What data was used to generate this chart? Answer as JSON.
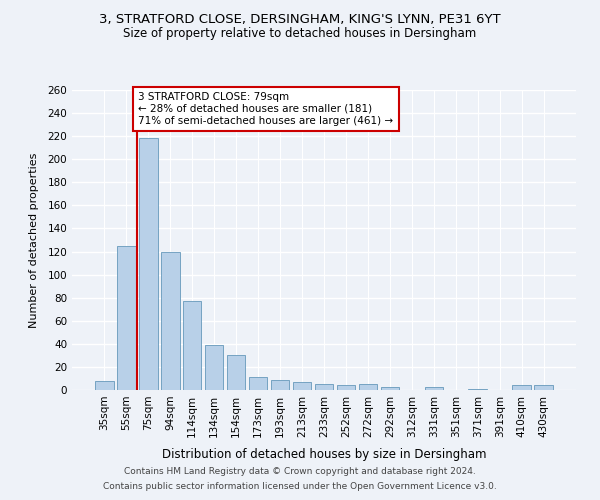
{
  "title1": "3, STRATFORD CLOSE, DERSINGHAM, KING'S LYNN, PE31 6YT",
  "title2": "Size of property relative to detached houses in Dersingham",
  "xlabel": "Distribution of detached houses by size in Dersingham",
  "ylabel": "Number of detached properties",
  "categories": [
    "35sqm",
    "55sqm",
    "75sqm",
    "94sqm",
    "114sqm",
    "134sqm",
    "154sqm",
    "173sqm",
    "193sqm",
    "213sqm",
    "233sqm",
    "252sqm",
    "272sqm",
    "292sqm",
    "312sqm",
    "331sqm",
    "351sqm",
    "371sqm",
    "391sqm",
    "410sqm",
    "430sqm"
  ],
  "values": [
    8,
    125,
    218,
    120,
    77,
    39,
    30,
    11,
    9,
    7,
    5,
    4,
    5,
    3,
    0,
    3,
    0,
    1,
    0,
    4,
    4
  ],
  "bar_color": "#b8d0e8",
  "bar_edge_color": "#6699bb",
  "red_line_index": 2,
  "annotation_line1": "3 STRATFORD CLOSE: 79sqm",
  "annotation_line2": "← 28% of detached houses are smaller (181)",
  "annotation_line3": "71% of semi-detached houses are larger (461) →",
  "annotation_box_color": "#ffffff",
  "annotation_box_edge": "#cc0000",
  "red_line_color": "#cc0000",
  "footer1": "Contains HM Land Registry data © Crown copyright and database right 2024.",
  "footer2": "Contains public sector information licensed under the Open Government Licence v3.0.",
  "background_color": "#eef2f8",
  "ylim": [
    0,
    260
  ],
  "yticks": [
    0,
    20,
    40,
    60,
    80,
    100,
    120,
    140,
    160,
    180,
    200,
    220,
    240,
    260
  ],
  "title1_fontsize": 9.5,
  "title2_fontsize": 8.5,
  "xlabel_fontsize": 8.5,
  "ylabel_fontsize": 8.0,
  "tick_fontsize": 7.5,
  "annot_fontsize": 7.5,
  "footer_fontsize": 6.5
}
